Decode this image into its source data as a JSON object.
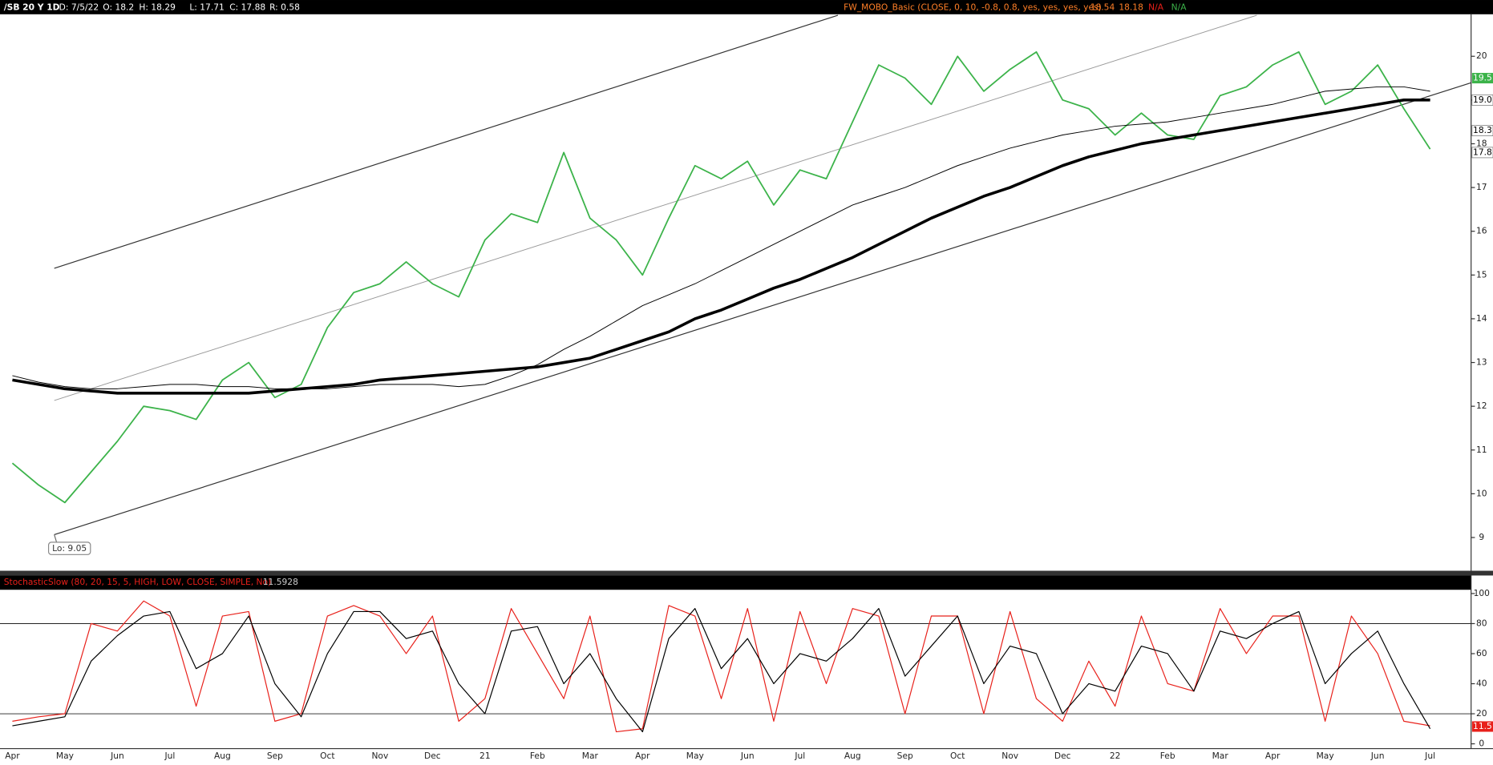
{
  "header": {
    "symbol": "/SB 20 Y 1D",
    "date": "D: 7/5/22",
    "open": "O: 18.2",
    "high": "H: 18.29",
    "low": "L: 17.71",
    "close": "C: 17.88",
    "range": "R: 0.58",
    "study": "FW_MOBO_Basic (CLOSE, 0, 10, -0.8, 0.8, yes, yes, yes, yes)",
    "study_values": [
      "18.54",
      "18.18",
      "N/A",
      "N/A"
    ]
  },
  "chart_data": {
    "type": "line",
    "categories": [
      "Apr",
      null,
      "May",
      null,
      "Jun",
      null,
      "Jul",
      null,
      "Aug",
      null,
      "Sep",
      null,
      "Oct",
      null,
      "Nov",
      null,
      "Dec",
      null,
      "21",
      null,
      "Feb",
      null,
      "Mar",
      null,
      "Apr",
      null,
      "May",
      null,
      "Jun",
      null,
      "Jul",
      null,
      "Aug",
      null,
      "Sep",
      null,
      "Oct",
      null,
      "Nov",
      null,
      "Dec",
      null,
      "22",
      null,
      "Feb",
      null,
      "Mar",
      null,
      "Apr",
      null,
      "May",
      null,
      "Jun",
      null,
      "Jul"
    ],
    "panels": [
      {
        "ylim": [
          8.24,
          20.96
        ],
        "yticks": [
          9,
          10,
          11,
          12,
          13,
          14,
          15,
          16,
          17,
          18,
          19,
          20
        ],
        "annotation": "Lo: 9.05",
        "series": [
          {
            "color": "#3cb34a",
            "line_width": 1.5,
            "values": [
              10.7,
              10.2,
              9.8,
              10.5,
              11.2,
              12.0,
              11.9,
              11.7,
              12.6,
              13.0,
              12.2,
              12.5,
              13.8,
              14.6,
              14.8,
              15.3,
              14.8,
              14.5,
              15.8,
              16.4,
              16.2,
              17.8,
              16.3,
              15.8,
              15.0,
              16.3,
              17.5,
              17.2,
              17.6,
              16.6,
              17.4,
              17.2,
              18.5,
              19.8,
              19.5,
              18.9,
              20.0,
              19.2,
              19.7,
              20.1,
              19.0,
              18.8,
              18.2,
              18.7,
              18.2,
              18.1,
              19.1,
              19.3,
              19.8,
              20.1,
              18.9,
              19.2,
              19.8,
              18.8,
              17.88
            ]
          },
          {
            "color": "#000000",
            "line_width": 0.8,
            "values": [
              12.7,
              12.55,
              12.45,
              12.4,
              12.4,
              12.45,
              12.5,
              12.5,
              12.45,
              12.45,
              12.4,
              12.4,
              12.4,
              12.45,
              12.5,
              12.5,
              12.5,
              12.45,
              12.5,
              12.7,
              12.95,
              13.3,
              13.6,
              13.95,
              14.3,
              14.55,
              14.8,
              15.1,
              15.4,
              15.7,
              16.0,
              16.3,
              16.6,
              16.8,
              17.0,
              17.25,
              17.5,
              17.7,
              17.9,
              18.05,
              18.2,
              18.3,
              18.4,
              18.45,
              18.5,
              18.6,
              18.7,
              18.8,
              18.9,
              19.05,
              19.2,
              19.25,
              19.3,
              19.3,
              19.2
            ]
          },
          {
            "color": "#000000",
            "line_width": 3,
            "values": [
              12.6,
              12.5,
              12.4,
              12.35,
              12.3,
              12.3,
              12.3,
              12.3,
              12.3,
              12.3,
              12.35,
              12.4,
              12.45,
              12.5,
              12.6,
              12.65,
              12.7,
              12.75,
              12.8,
              12.85,
              12.9,
              13.0,
              13.1,
              13.3,
              13.5,
              13.7,
              14.0,
              14.2,
              14.45,
              14.7,
              14.9,
              15.15,
              15.4,
              15.7,
              16.0,
              16.3,
              16.55,
              16.8,
              17.0,
              17.25,
              17.5,
              17.7,
              17.85,
              18.0,
              18.1,
              18.2,
              18.3,
              18.4,
              18.5,
              18.6,
              18.7,
              18.8,
              18.9,
              19.0,
              19.0
            ]
          }
        ],
        "price_tags": [
          {
            "value": 19.5,
            "label": "19.5",
            "color": "#3cb34a"
          },
          {
            "value": 19.0,
            "label": "19.0",
            "color": "#ffffff"
          },
          {
            "value": 18.3,
            "label": "18.3",
            "color": "#ffffff"
          },
          {
            "value": 17.8,
            "label": "17.8",
            "color": "#ffffff"
          }
        ]
      },
      {
        "title": "StochasticSlow (80, 20, 15, 5, HIGH, LOW, CLOSE, SIMPLE, No)",
        "title_value": "11.5928",
        "ylim": [
          -3.2,
          102.5
        ],
        "yticks": [
          0,
          20,
          40,
          60,
          80,
          100
        ],
        "levels": [
          20,
          80
        ],
        "series": [
          {
            "color": "#e8201a",
            "line_width": 1,
            "values": [
              15,
              18,
              20,
              80,
              75,
              95,
              85,
              25,
              85,
              88,
              15,
              20,
              85,
              92,
              85,
              60,
              85,
              15,
              30,
              90,
              60,
              30,
              85,
              8,
              10,
              92,
              85,
              30,
              90,
              15,
              88,
              40,
              90,
              85,
              20,
              85,
              85,
              20,
              88,
              30,
              15,
              55,
              25,
              85,
              40,
              35,
              90,
              60,
              85,
              85,
              15,
              85,
              60,
              15,
              12
            ]
          },
          {
            "color": "#000000",
            "line_width": 1,
            "values": [
              12,
              15,
              18,
              55,
              72,
              85,
              88,
              50,
              60,
              85,
              40,
              18,
              60,
              88,
              88,
              70,
              75,
              40,
              20,
              75,
              78,
              40,
              60,
              30,
              8,
              70,
              90,
              50,
              70,
              40,
              60,
              55,
              70,
              90,
              45,
              65,
              85,
              40,
              65,
              60,
              20,
              40,
              35,
              65,
              60,
              35,
              75,
              70,
              80,
              88,
              40,
              60,
              75,
              40,
              10
            ]
          }
        ],
        "price_tags": [
          {
            "value": 11.5,
            "label": "11.5",
            "color": "#e8201a"
          }
        ]
      }
    ]
  }
}
